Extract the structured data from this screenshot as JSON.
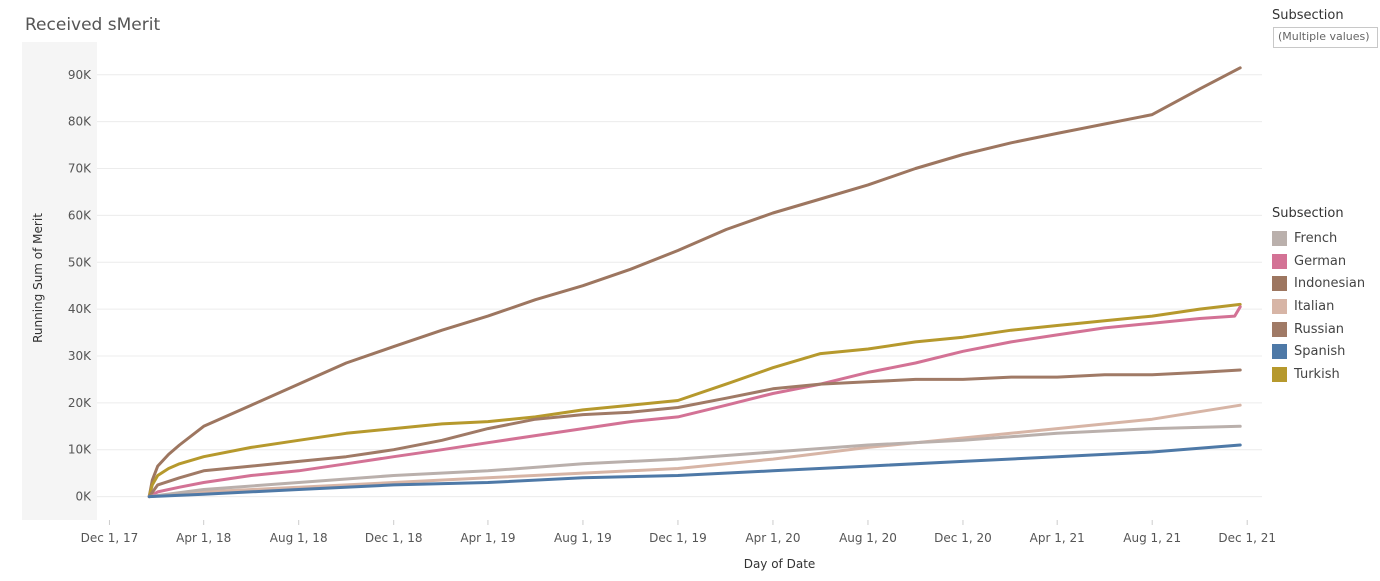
{
  "title": "Received sMerit",
  "filter": {
    "title": "Subsection",
    "value": "(Multiple values)"
  },
  "legend": {
    "title": "Subsection"
  },
  "colors": {
    "French": "#bab0ac",
    "German": "#d37295",
    "Indonesian": "#9d7660",
    "Italian": "#d7b5a6",
    "Russian": "#a07a66",
    "Spanish": "#4e79a7",
    "Turkish": "#b6992d"
  },
  "chart_data": {
    "type": "line",
    "xlabel": "Day of Date",
    "ylabel": "Running Sum of Merit",
    "x_ticks": [
      "Dec 1, 17",
      "Apr 1, 18",
      "Aug 1, 18",
      "Dec 1, 18",
      "Apr 1, 19",
      "Aug 1, 19",
      "Dec 1, 19",
      "Apr 1, 20",
      "Aug 1, 20",
      "Dec 1, 20",
      "Apr 1, 21",
      "Aug 1, 21",
      "Dec 1, 21"
    ],
    "y_ticks": [
      "0K",
      "10K",
      "20K",
      "30K",
      "40K",
      "50K",
      "60K",
      "70K",
      "80K",
      "90K"
    ],
    "xlim": [
      "2017-11-15",
      "2021-12-20"
    ],
    "ylim": [
      -5000,
      97000
    ],
    "grid": true,
    "legend_position": "right",
    "series": [
      {
        "name": "Indonesian",
        "x": [
          "2018-01-21",
          "2018-01-25",
          "2018-02-01",
          "2018-02-15",
          "2018-03-01",
          "2018-04-01",
          "2018-06-01",
          "2018-08-01",
          "2018-10-01",
          "2018-12-01",
          "2019-02-01",
          "2019-04-01",
          "2019-06-01",
          "2019-08-01",
          "2019-10-01",
          "2019-12-01",
          "2020-02-01",
          "2020-04-01",
          "2020-06-01",
          "2020-08-01",
          "2020-10-01",
          "2020-12-01",
          "2021-02-01",
          "2021-04-01",
          "2021-06-01",
          "2021-08-01",
          "2021-10-01",
          "2021-11-22"
        ],
        "y": [
          0,
          3500,
          6500,
          9000,
          11000,
          15000,
          19500,
          24000,
          28500,
          32000,
          35500,
          38500,
          42000,
          45000,
          48500,
          52500,
          57000,
          60500,
          63500,
          66500,
          70000,
          73000,
          75500,
          77500,
          79500,
          81500,
          87000,
          91500
        ]
      },
      {
        "name": "Turkish",
        "x": [
          "2018-01-21",
          "2018-01-25",
          "2018-02-01",
          "2018-02-15",
          "2018-03-01",
          "2018-04-01",
          "2018-06-01",
          "2018-08-01",
          "2018-10-01",
          "2018-12-01",
          "2019-02-01",
          "2019-04-01",
          "2019-06-01",
          "2019-08-01",
          "2019-10-01",
          "2019-12-01",
          "2020-02-01",
          "2020-04-01",
          "2020-06-01",
          "2020-08-01",
          "2020-10-01",
          "2020-12-01",
          "2021-02-01",
          "2021-04-01",
          "2021-06-01",
          "2021-08-01",
          "2021-10-01",
          "2021-11-22"
        ],
        "y": [
          0,
          2500,
          4500,
          6000,
          7000,
          8500,
          10500,
          12000,
          13500,
          14500,
          15500,
          16000,
          17000,
          18500,
          19500,
          20500,
          24000,
          27500,
          30500,
          31500,
          33000,
          34000,
          35500,
          36500,
          37500,
          38500,
          40000,
          41000
        ]
      },
      {
        "name": "German",
        "x": [
          "2018-01-21",
          "2018-02-01",
          "2018-03-01",
          "2018-04-01",
          "2018-06-01",
          "2018-08-01",
          "2018-10-01",
          "2018-12-01",
          "2019-02-01",
          "2019-04-01",
          "2019-06-01",
          "2019-08-01",
          "2019-10-01",
          "2019-12-01",
          "2020-02-01",
          "2020-04-01",
          "2020-06-01",
          "2020-08-01",
          "2020-10-01",
          "2020-12-01",
          "2021-02-01",
          "2021-04-01",
          "2021-06-01",
          "2021-08-01",
          "2021-10-01",
          "2021-11-15",
          "2021-11-22"
        ],
        "y": [
          0,
          1000,
          2000,
          3000,
          4500,
          5500,
          7000,
          8500,
          10000,
          11500,
          13000,
          14500,
          16000,
          17000,
          19500,
          22000,
          24000,
          26500,
          28500,
          31000,
          33000,
          34500,
          36000,
          37000,
          38000,
          38500,
          40500
        ]
      },
      {
        "name": "Russian",
        "x": [
          "2018-01-21",
          "2018-02-01",
          "2018-03-01",
          "2018-04-01",
          "2018-06-01",
          "2018-08-01",
          "2018-10-01",
          "2018-12-01",
          "2019-02-01",
          "2019-04-01",
          "2019-06-01",
          "2019-08-01",
          "2019-10-01",
          "2019-12-01",
          "2020-02-01",
          "2020-04-01",
          "2020-06-01",
          "2020-08-01",
          "2020-10-01",
          "2020-12-01",
          "2021-02-01",
          "2021-04-01",
          "2021-06-01",
          "2021-08-01",
          "2021-10-01",
          "2021-11-22"
        ],
        "y": [
          0,
          2500,
          4000,
          5500,
          6500,
          7500,
          8500,
          10000,
          12000,
          14500,
          16500,
          17500,
          18000,
          19000,
          21000,
          23000,
          24000,
          24500,
          25000,
          25000,
          25500,
          25500,
          26000,
          26000,
          26500,
          27000
        ]
      },
      {
        "name": "Italian",
        "x": [
          "2018-01-21",
          "2018-04-01",
          "2018-08-01",
          "2018-12-01",
          "2019-04-01",
          "2019-08-01",
          "2019-12-01",
          "2020-04-01",
          "2020-08-01",
          "2020-12-01",
          "2021-04-01",
          "2021-08-01",
          "2021-11-22"
        ],
        "y": [
          0,
          1000,
          2000,
          3000,
          4000,
          5000,
          6000,
          8000,
          10500,
          12500,
          14500,
          16500,
          19500
        ]
      },
      {
        "name": "French",
        "x": [
          "2018-01-21",
          "2018-04-01",
          "2018-08-01",
          "2018-12-01",
          "2019-04-01",
          "2019-08-01",
          "2019-12-01",
          "2020-04-01",
          "2020-08-01",
          "2020-12-01",
          "2021-04-01",
          "2021-08-01",
          "2021-11-22"
        ],
        "y": [
          0,
          1500,
          3000,
          4500,
          5500,
          7000,
          8000,
          9500,
          11000,
          12000,
          13500,
          14500,
          15000
        ]
      },
      {
        "name": "Spanish",
        "x": [
          "2018-01-21",
          "2018-04-01",
          "2018-08-01",
          "2018-12-01",
          "2019-04-01",
          "2019-08-01",
          "2019-12-01",
          "2020-04-01",
          "2020-08-01",
          "2020-12-01",
          "2021-04-01",
          "2021-08-01",
          "2021-11-22"
        ],
        "y": [
          0,
          500,
          1500,
          2500,
          3000,
          4000,
          4500,
          5500,
          6500,
          7500,
          8500,
          9500,
          11000
        ]
      }
    ]
  }
}
